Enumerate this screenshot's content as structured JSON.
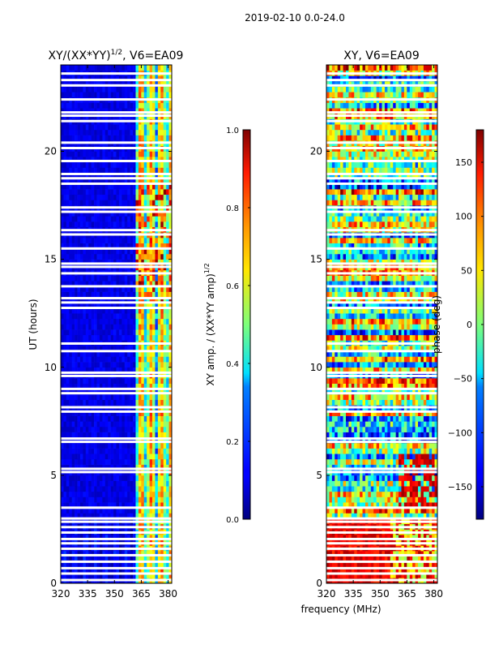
{
  "figure": {
    "suptitle": "2019-02-10 0.0-24.0",
    "xlabel": "frequency (MHz)"
  },
  "chart_data": [
    {
      "type": "heatmap",
      "title_main": "XY/(XX*YY)",
      "title_sup": "1/2",
      "title_rest": ", V6=EA09",
      "xlabel": "",
      "ylabel": "UT (hours)",
      "xlim": [
        320,
        382
      ],
      "ylim": [
        0,
        24
      ],
      "xticks": [
        320,
        335,
        350,
        365,
        380
      ],
      "yticks": [
        0,
        5,
        10,
        15,
        20
      ],
      "colormap": "jet",
      "colorbar": {
        "label_main": "XY amp. / (XX*YY amp)",
        "label_sup": "1/2",
        "range": [
          0.0,
          1.0
        ],
        "ticks": [
          "0.0",
          "0.2",
          "0.4",
          "0.6",
          "0.8",
          "1.0"
        ],
        "tick_values": [
          0.0,
          0.2,
          0.4,
          0.6,
          0.8,
          1.0
        ]
      },
      "description_bands": [
        {
          "x_range": [
            320,
            362
          ],
          "typical_value": 0.08
        },
        {
          "x_range": [
            362,
            382
          ],
          "typical_value": 0.45
        }
      ],
      "blank_rows_ut": [
        0.15,
        0.45,
        0.7,
        1.0,
        1.3,
        1.6,
        1.85,
        2.05,
        2.35,
        2.6,
        2.85,
        3.0,
        3.5,
        5.15,
        5.3,
        6.55,
        6.7,
        7.95,
        8.15,
        8.8,
        9.0,
        9.6,
        9.75,
        10.75,
        11.1,
        12.75,
        13.0,
        13.2,
        13.75,
        14.35,
        14.65,
        14.8,
        15.5,
        16.15,
        16.35,
        17.2,
        17.4,
        18.5,
        18.75,
        18.95,
        19.55,
        20.15,
        20.4,
        21.4,
        21.65,
        21.8,
        22.4,
        23.05,
        23.3,
        23.6
      ]
    },
    {
      "type": "heatmap",
      "title_main": "XY, V6=EA09",
      "xlabel": "",
      "ylabel": "",
      "xlim": [
        320,
        382
      ],
      "ylim": [
        0,
        24
      ],
      "xticks": [
        320,
        335,
        350,
        365,
        380
      ],
      "yticks": [
        0,
        5,
        10,
        15,
        20
      ],
      "colormap": "jet",
      "colorbar": {
        "label_main": "phase (deg)",
        "range": [
          -180,
          180
        ],
        "ticks": [
          "−150",
          "−100",
          "−50",
          "0",
          "50",
          "100",
          "150"
        ],
        "tick_values": [
          -150,
          -100,
          -50,
          0,
          50,
          100,
          150
        ]
      },
      "description_bands": [
        {
          "x_range": [
            320,
            382
          ],
          "ut_range": [
            0,
            3
          ],
          "typical_value": 160
        },
        {
          "x_range": [
            320,
            382
          ],
          "ut_range": [
            3,
            24
          ],
          "typical_value": 0
        }
      ],
      "blank_rows_ut": [
        0.15,
        0.45,
        0.7,
        1.0,
        1.3,
        1.6,
        1.85,
        2.05,
        2.35,
        2.6,
        2.85,
        3.0,
        3.5,
        5.15,
        5.3,
        6.55,
        6.7,
        7.95,
        8.15,
        8.8,
        9.0,
        9.6,
        9.75,
        10.75,
        11.1,
        12.75,
        13.0,
        13.2,
        13.75,
        14.35,
        14.65,
        14.8,
        15.5,
        16.15,
        16.35,
        17.2,
        17.4,
        18.5,
        18.75,
        18.95,
        19.55,
        20.15,
        20.4,
        21.4,
        21.65,
        21.8,
        22.4,
        23.05,
        23.3,
        23.6
      ]
    }
  ]
}
